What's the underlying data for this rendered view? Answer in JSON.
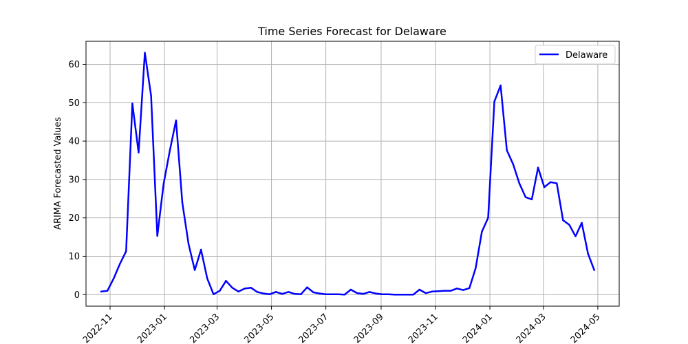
{
  "chart_data": {
    "type": "line",
    "title": "Time Series Forecast for Delaware",
    "xlabel": "",
    "ylabel": "ARIMA Forecasted Values",
    "x_tick_labels": [
      "2022-11",
      "2023-01",
      "2023-03",
      "2023-05",
      "2023-07",
      "2023-09",
      "2023-11",
      "2024-01",
      "2024-03",
      "2024-05"
    ],
    "x_tick_dates": [
      "2022-11-01",
      "2023-01-01",
      "2023-03-01",
      "2023-05-01",
      "2023-07-01",
      "2023-09-01",
      "2023-11-01",
      "2024-01-01",
      "2024-03-01",
      "2024-05-01"
    ],
    "y_ticks": [
      0,
      10,
      20,
      30,
      40,
      50,
      60
    ],
    "xlim": [
      "2022-10-05",
      "2024-05-25"
    ],
    "ylim": [
      -3,
      66
    ],
    "grid": true,
    "legend_position": "top-right",
    "series": [
      {
        "name": "Delaware",
        "color": "#0000ff",
        "x": [
          "2022-10-22",
          "2022-10-29",
          "2022-11-05",
          "2022-11-12",
          "2022-11-19",
          "2022-11-26",
          "2022-12-03",
          "2022-12-10",
          "2022-12-17",
          "2022-12-24",
          "2022-12-31",
          "2023-01-07",
          "2023-01-14",
          "2023-01-21",
          "2023-01-28",
          "2023-02-04",
          "2023-02-11",
          "2023-02-18",
          "2023-02-25",
          "2023-03-04",
          "2023-03-11",
          "2023-03-18",
          "2023-03-25",
          "2023-04-01",
          "2023-04-08",
          "2023-04-15",
          "2023-04-22",
          "2023-04-29",
          "2023-05-06",
          "2023-05-13",
          "2023-05-20",
          "2023-05-27",
          "2023-06-03",
          "2023-06-10",
          "2023-06-17",
          "2023-06-24",
          "2023-07-01",
          "2023-07-08",
          "2023-07-15",
          "2023-07-22",
          "2023-07-29",
          "2023-08-05",
          "2023-08-12",
          "2023-08-19",
          "2023-08-26",
          "2023-09-02",
          "2023-09-09",
          "2023-09-16",
          "2023-09-23",
          "2023-09-30",
          "2023-10-07",
          "2023-10-14",
          "2023-10-21",
          "2023-10-28",
          "2023-11-04",
          "2023-11-11",
          "2023-11-18",
          "2023-11-25",
          "2023-12-02",
          "2023-12-09",
          "2023-12-16",
          "2023-12-23",
          "2023-12-30",
          "2024-01-06",
          "2024-01-13",
          "2024-01-20",
          "2024-01-27",
          "2024-02-03",
          "2024-02-10",
          "2024-02-17",
          "2024-02-24",
          "2024-03-02",
          "2024-03-09",
          "2024-03-16",
          "2024-03-23",
          "2024-03-30",
          "2024-04-06",
          "2024-04-13",
          "2024-04-20",
          "2024-04-27"
        ],
        "values": [
          0.8,
          1.0,
          4.2,
          8.0,
          11.3,
          49.8,
          37.0,
          63.0,
          51.8,
          15.3,
          28.8,
          37.5,
          45.4,
          24.0,
          13.2,
          6.4,
          11.7,
          4.2,
          0.1,
          1.0,
          3.6,
          1.8,
          0.8,
          1.6,
          1.8,
          0.7,
          0.3,
          0.1,
          0.7,
          0.2,
          0.7,
          0.2,
          0.1,
          1.9,
          0.6,
          0.3,
          0.1,
          0.1,
          0.1,
          0.0,
          1.3,
          0.4,
          0.2,
          0.7,
          0.3,
          0.1,
          0.1,
          0.0,
          0.0,
          0.0,
          0.0,
          1.3,
          0.4,
          0.8,
          0.9,
          1.0,
          1.0,
          1.6,
          1.2,
          1.7,
          6.9,
          16.4,
          20.0,
          50.3,
          54.5,
          37.6,
          34.0,
          29.0,
          25.4,
          24.8,
          33.1,
          28.0,
          29.3,
          29.0,
          19.4,
          18.2,
          15.2,
          18.7,
          10.7,
          6.4
        ]
      }
    ]
  }
}
